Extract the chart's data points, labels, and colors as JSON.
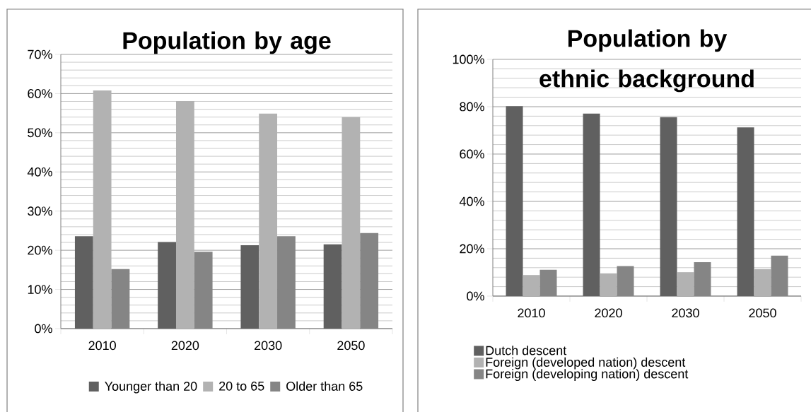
{
  "chart_data": [
    {
      "type": "bar",
      "title": "Population by age",
      "categories": [
        "2010",
        "2020",
        "2030",
        "2050"
      ],
      "series": [
        {
          "name": "Younger than 20",
          "color": "#606060",
          "values": [
            23.6,
            22.1,
            21.3,
            21.5
          ]
        },
        {
          "name": "20 to 65",
          "color": "#b2b2b2",
          "values": [
            60.8,
            58.1,
            54.9,
            54.0
          ]
        },
        {
          "name": "Older than 65",
          "color": "#858585",
          "values": [
            15.2,
            19.6,
            23.6,
            24.4
          ]
        }
      ],
      "ylim": [
        0,
        70
      ],
      "yticks": [
        {
          "value": 0,
          "label": "0%"
        },
        {
          "value": 10,
          "label": "10%"
        },
        {
          "value": 20,
          "label": "20%"
        },
        {
          "value": 30,
          "label": "30%"
        },
        {
          "value": 40,
          "label": "40%"
        },
        {
          "value": 50,
          "label": "50%"
        },
        {
          "value": 60,
          "label": "60%"
        },
        {
          "value": 70,
          "label": "70%"
        }
      ],
      "grid": "y",
      "legend": "bottom"
    },
    {
      "type": "bar",
      "title": "Population by ethnic background",
      "categories": [
        "2010",
        "2020",
        "2030",
        "2050"
      ],
      "series": [
        {
          "name": "Dutch descent",
          "color": "#606060",
          "values": [
            80.2,
            77.1,
            75.6,
            71.3
          ]
        },
        {
          "name": "Foreign (developed nation) descent",
          "color": "#b2b2b2",
          "values": [
            8.9,
            9.6,
            10.1,
            11.4
          ]
        },
        {
          "name": "Foreign (developing nation) descent",
          "color": "#858585",
          "values": [
            11.1,
            12.7,
            14.3,
            17.1
          ]
        }
      ],
      "ylim": [
        0,
        100
      ],
      "yticks": [
        {
          "value": 0,
          "label": "0%"
        },
        {
          "value": 20,
          "label": "20%"
        },
        {
          "value": 40,
          "label": "40%"
        },
        {
          "value": 60,
          "label": "60%"
        },
        {
          "value": 80,
          "label": "80%"
        },
        {
          "value": 100,
          "label": "100%"
        }
      ],
      "grid": "y",
      "legend": "bottom"
    }
  ]
}
